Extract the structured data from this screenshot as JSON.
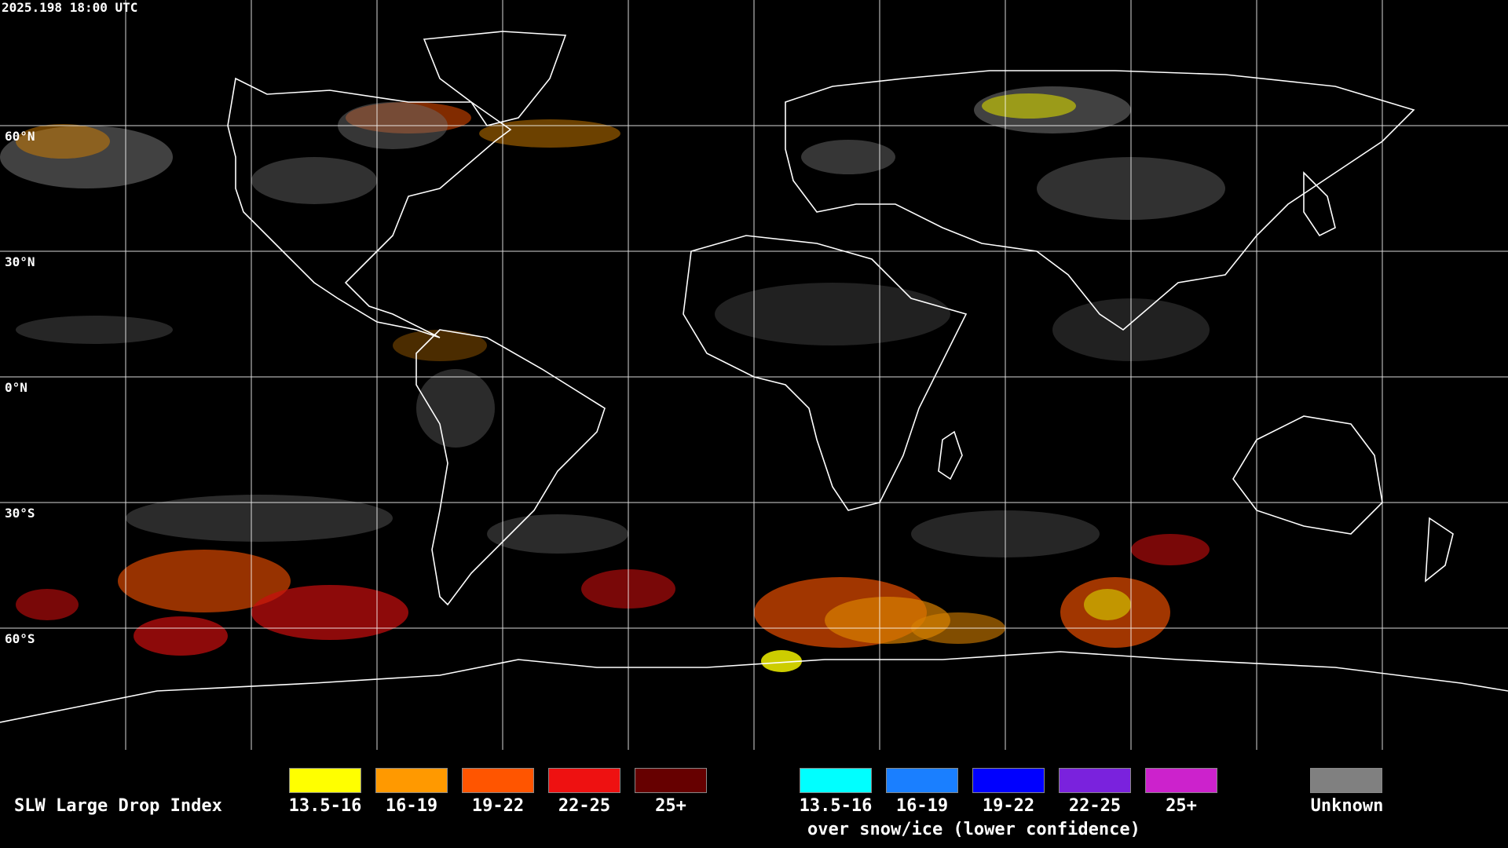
{
  "timestamp": "2025.198 18:00 UTC",
  "lat_labels": [
    "60°N",
    "30°N",
    "0°N",
    "30°S",
    "60°S"
  ],
  "legend": {
    "title": "SLW Large Drop Index",
    "liquid": [
      {
        "label": "13.5-16",
        "color": "#ffff00"
      },
      {
        "label": "16-19",
        "color": "#ff9900"
      },
      {
        "label": "19-22",
        "color": "#ff5500"
      },
      {
        "label": "22-25",
        "color": "#ee1111"
      },
      {
        "label": "25+",
        "color": "#660000"
      }
    ],
    "snow_ice": [
      {
        "label": "13.5-16",
        "color": "#00ffff"
      },
      {
        "label": "16-19",
        "color": "#1a7fff"
      },
      {
        "label": "19-22",
        "color": "#0000ff"
      },
      {
        "label": "22-25",
        "color": "#7a22dd"
      },
      {
        "label": "25+",
        "color": "#cc22cc"
      }
    ],
    "snow_ice_note": "over snow/ice (lower confidence)",
    "unknown": {
      "label": "Unknown",
      "color": "#808080"
    }
  },
  "colors": {
    "background": "#000000",
    "grid": "#ffffff",
    "coast": "#ffffff"
  }
}
